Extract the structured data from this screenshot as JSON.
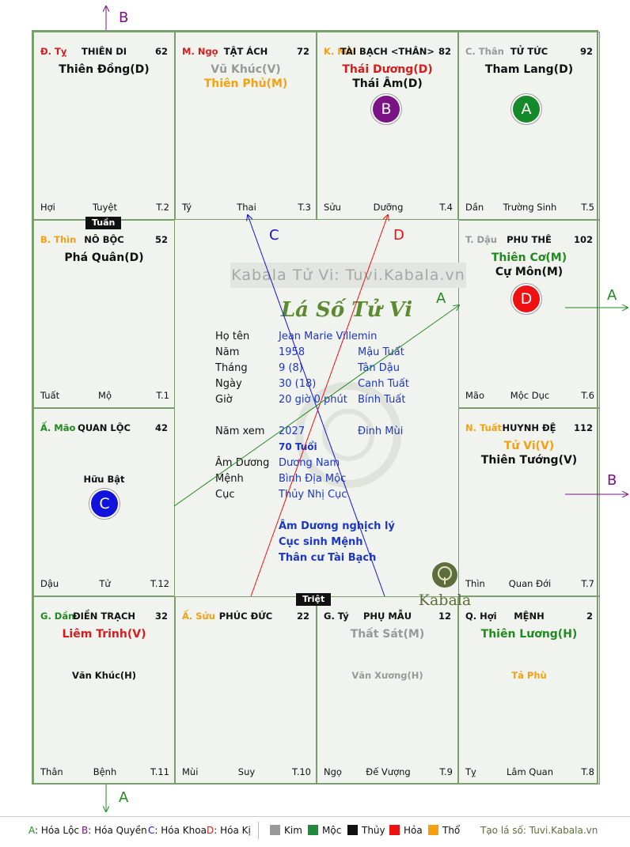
{
  "palaces": [
    {
      "pos": "top-0",
      "can": "Đ. Tỵ",
      "can_color": "#d61c1c",
      "name": "THIÊN DI",
      "num": "62",
      "stars": [
        {
          "t": "Thiên Đồng(D)",
          "c": "#111"
        }
      ],
      "minor": [],
      "footer": [
        "Hợi",
        "Tuyệt",
        "T.2"
      ]
    },
    {
      "pos": "top-1",
      "can": "M. Ngọ",
      "can_color": "#d61c1c",
      "name": "TẬT ÁCH",
      "num": "72",
      "stars": [
        {
          "t": "Vũ Khúc(V)",
          "c": "#999"
        },
        {
          "t": "Thiên Phủ(M)",
          "c": "#f5a011"
        }
      ],
      "minor": [],
      "footer": [
        "Tý",
        "Thai",
        "T.3"
      ]
    },
    {
      "pos": "top-2",
      "can": "K. Mùi",
      "can_color": "#f5a011",
      "name": "TÀI BẠCH <THÂN>",
      "num": "82",
      "stars": [
        {
          "t": "Thái Dương(D)",
          "c": "#d61c1c"
        },
        {
          "t": "Thái Âm(D)",
          "c": "#111"
        }
      ],
      "minor": [],
      "footer": [
        "Sửu",
        "Dưỡng",
        "T.4"
      ]
    },
    {
      "pos": "top-3",
      "can": "C. Thân",
      "can_color": "#999",
      "name": "TỬ TỨC",
      "num": "92",
      "stars": [
        {
          "t": "Tham Lang(D)",
          "c": "#111"
        }
      ],
      "minor": [],
      "footer": [
        "Dần",
        "Trường Sinh",
        "T.5"
      ]
    },
    {
      "pos": "right-1",
      "can": "T. Dậu",
      "can_color": "#999",
      "name": "PHU THÊ",
      "num": "102",
      "stars": [
        {
          "t": "Thiên Cơ(M)",
          "c": "#1f8a1f"
        },
        {
          "t": "Cự Môn(M)",
          "c": "#111"
        }
      ],
      "minor": [],
      "footer": [
        "Mão",
        "Mộc Dục",
        "T.6"
      ]
    },
    {
      "pos": "right-2",
      "can": "N. Tuất",
      "can_color": "#f5a011",
      "name": "HUYNH ĐỆ",
      "num": "112",
      "stars": [
        {
          "t": "Tử Vi(V)",
          "c": "#f5a011"
        },
        {
          "t": "Thiên Tướng(V)",
          "c": "#111"
        }
      ],
      "minor": [],
      "footer": [
        "Thìn",
        "Quan Đới",
        "T.7"
      ]
    },
    {
      "pos": "bottom-3",
      "can": "Q. Hợi",
      "can_color": "#111",
      "name": "MỆNH",
      "num": "2",
      "stars": [
        {
          "t": "Thiên Lương(H)",
          "c": "#1f8a1f"
        }
      ],
      "minor": [
        {
          "t": "Tả Phù",
          "c": "#f5a011"
        }
      ],
      "footer": [
        "Tỵ",
        "Lâm Quan",
        "T.8"
      ]
    },
    {
      "pos": "bottom-2",
      "can": "G. Tý",
      "can_color": "#111",
      "name": "PHỤ MẪU",
      "num": "12",
      "stars": [
        {
          "t": "Thất Sát(M)",
          "c": "#999"
        }
      ],
      "minor": [
        {
          "t": "Văn Xương(H)",
          "c": "#999"
        }
      ],
      "footer": [
        "Ngọ",
        "Đế Vượng",
        "T.9"
      ]
    },
    {
      "pos": "bottom-1",
      "can": "Ấ. Sửu",
      "can_color": "#f5a011",
      "name": "PHÚC ĐỨC",
      "num": "22",
      "stars": [],
      "minor": [],
      "footer": [
        "Mùi",
        "Suy",
        "T.10"
      ]
    },
    {
      "pos": "bottom-0",
      "can": "G. Dần",
      "can_color": "#1f8a1f",
      "name": "ĐIỀN TRẠCH",
      "num": "32",
      "stars": [
        {
          "t": "Liêm Trinh(V)",
          "c": "#d61c1c"
        }
      ],
      "minor": [
        {
          "t": "Văn Khúc(H)",
          "c": "#111"
        }
      ],
      "footer": [
        "Thân",
        "Bệnh",
        "T.11"
      ]
    },
    {
      "pos": "left-2",
      "can": "Ấ. Mão",
      "can_color": "#1f8a1f",
      "name": "QUAN LỘC",
      "num": "42",
      "stars": [],
      "minor": [
        {
          "t": "Hữu Bật",
          "c": "#111"
        }
      ],
      "footer": [
        "Dậu",
        "Tử",
        "T.12"
      ]
    },
    {
      "pos": "left-1",
      "can": "B. Thìn",
      "can_color": "#f5a011",
      "name": "NÔ BỘC",
      "num": "52",
      "stars": [
        {
          "t": "Phá Quân(D)",
          "c": "#111"
        }
      ],
      "minor": [],
      "footer": [
        "Tuất",
        "Mộ",
        "T.1"
      ]
    }
  ],
  "tags": {
    "tuan": "Tuần",
    "triet": "Triệt"
  },
  "center": {
    "watermark": "Kabala Tử Vi: Tuvi.Kabala.vn",
    "title": "Lá Số Tử Vi",
    "rows": [
      {
        "label": "Họ tên",
        "v1": "Jean Marie Villemin",
        "v2": ""
      },
      {
        "label": "Năm",
        "v1": "1958",
        "v2": "Mậu Tuất"
      },
      {
        "label": "Tháng",
        "v1": "9  (8)",
        "v2": "Tân Dậu"
      },
      {
        "label": "Ngày",
        "v1": "30  (18)",
        "v2": "Canh Tuất"
      },
      {
        "label": "Giờ",
        "v1": "20 giờ 0 phút",
        "v2": "Bính Tuất"
      },
      {
        "label": "Năm xem",
        "v1": "2027",
        "v2": "Đinh Mùi"
      },
      {
        "label": "",
        "v1": "70 Tuổi",
        "v2": ""
      },
      {
        "label": "Âm Dương",
        "v1": "Dương Nam",
        "v2": ""
      },
      {
        "label": "Mệnh",
        "v1": "Bình Địa Mộc",
        "v2": ""
      },
      {
        "label": "Cục",
        "v1": "Thủy Nhị Cục",
        "v2": ""
      }
    ],
    "notes": [
      "Âm Dương nghịch lý",
      "Cục sinh Mệnh",
      "Thân cư Tài Bạch"
    ],
    "logo_text": "Kabala"
  },
  "circles": [
    {
      "label": "B",
      "color": "#7a1385"
    },
    {
      "label": "A",
      "color": "#158a2b"
    },
    {
      "label": "D",
      "color": "#ee1111"
    },
    {
      "label": "C",
      "color": "#1212dd"
    }
  ],
  "annotations": {
    "B_top": "B",
    "C": "C",
    "D": "D",
    "A_mid": "A",
    "A_right": "A",
    "B_right": "B",
    "A_bottom": "A"
  },
  "legend": {
    "items": [
      {
        "key": "A",
        "text": "Hóa Lộc",
        "color": "#1f8a1f"
      },
      {
        "key": "B",
        "text": "Hóa Quyền",
        "color": "#7a1385"
      },
      {
        "key": "C",
        "text": "Hóa Khoa",
        "color": "#1212dd"
      },
      {
        "key": "D",
        "text": "Hóa Kị",
        "color": "#d61c1c"
      }
    ],
    "elements": [
      {
        "name": "Kim",
        "color": "#999999"
      },
      {
        "name": "Mộc",
        "color": "#1f8a3a"
      },
      {
        "name": "Thủy",
        "color": "#111111"
      },
      {
        "name": "Hỏa",
        "color": "#ee1111"
      },
      {
        "name": "Thổ",
        "color": "#f5a011"
      }
    ],
    "site": "Tạo lá số: Tuvi.Kabala.vn"
  }
}
